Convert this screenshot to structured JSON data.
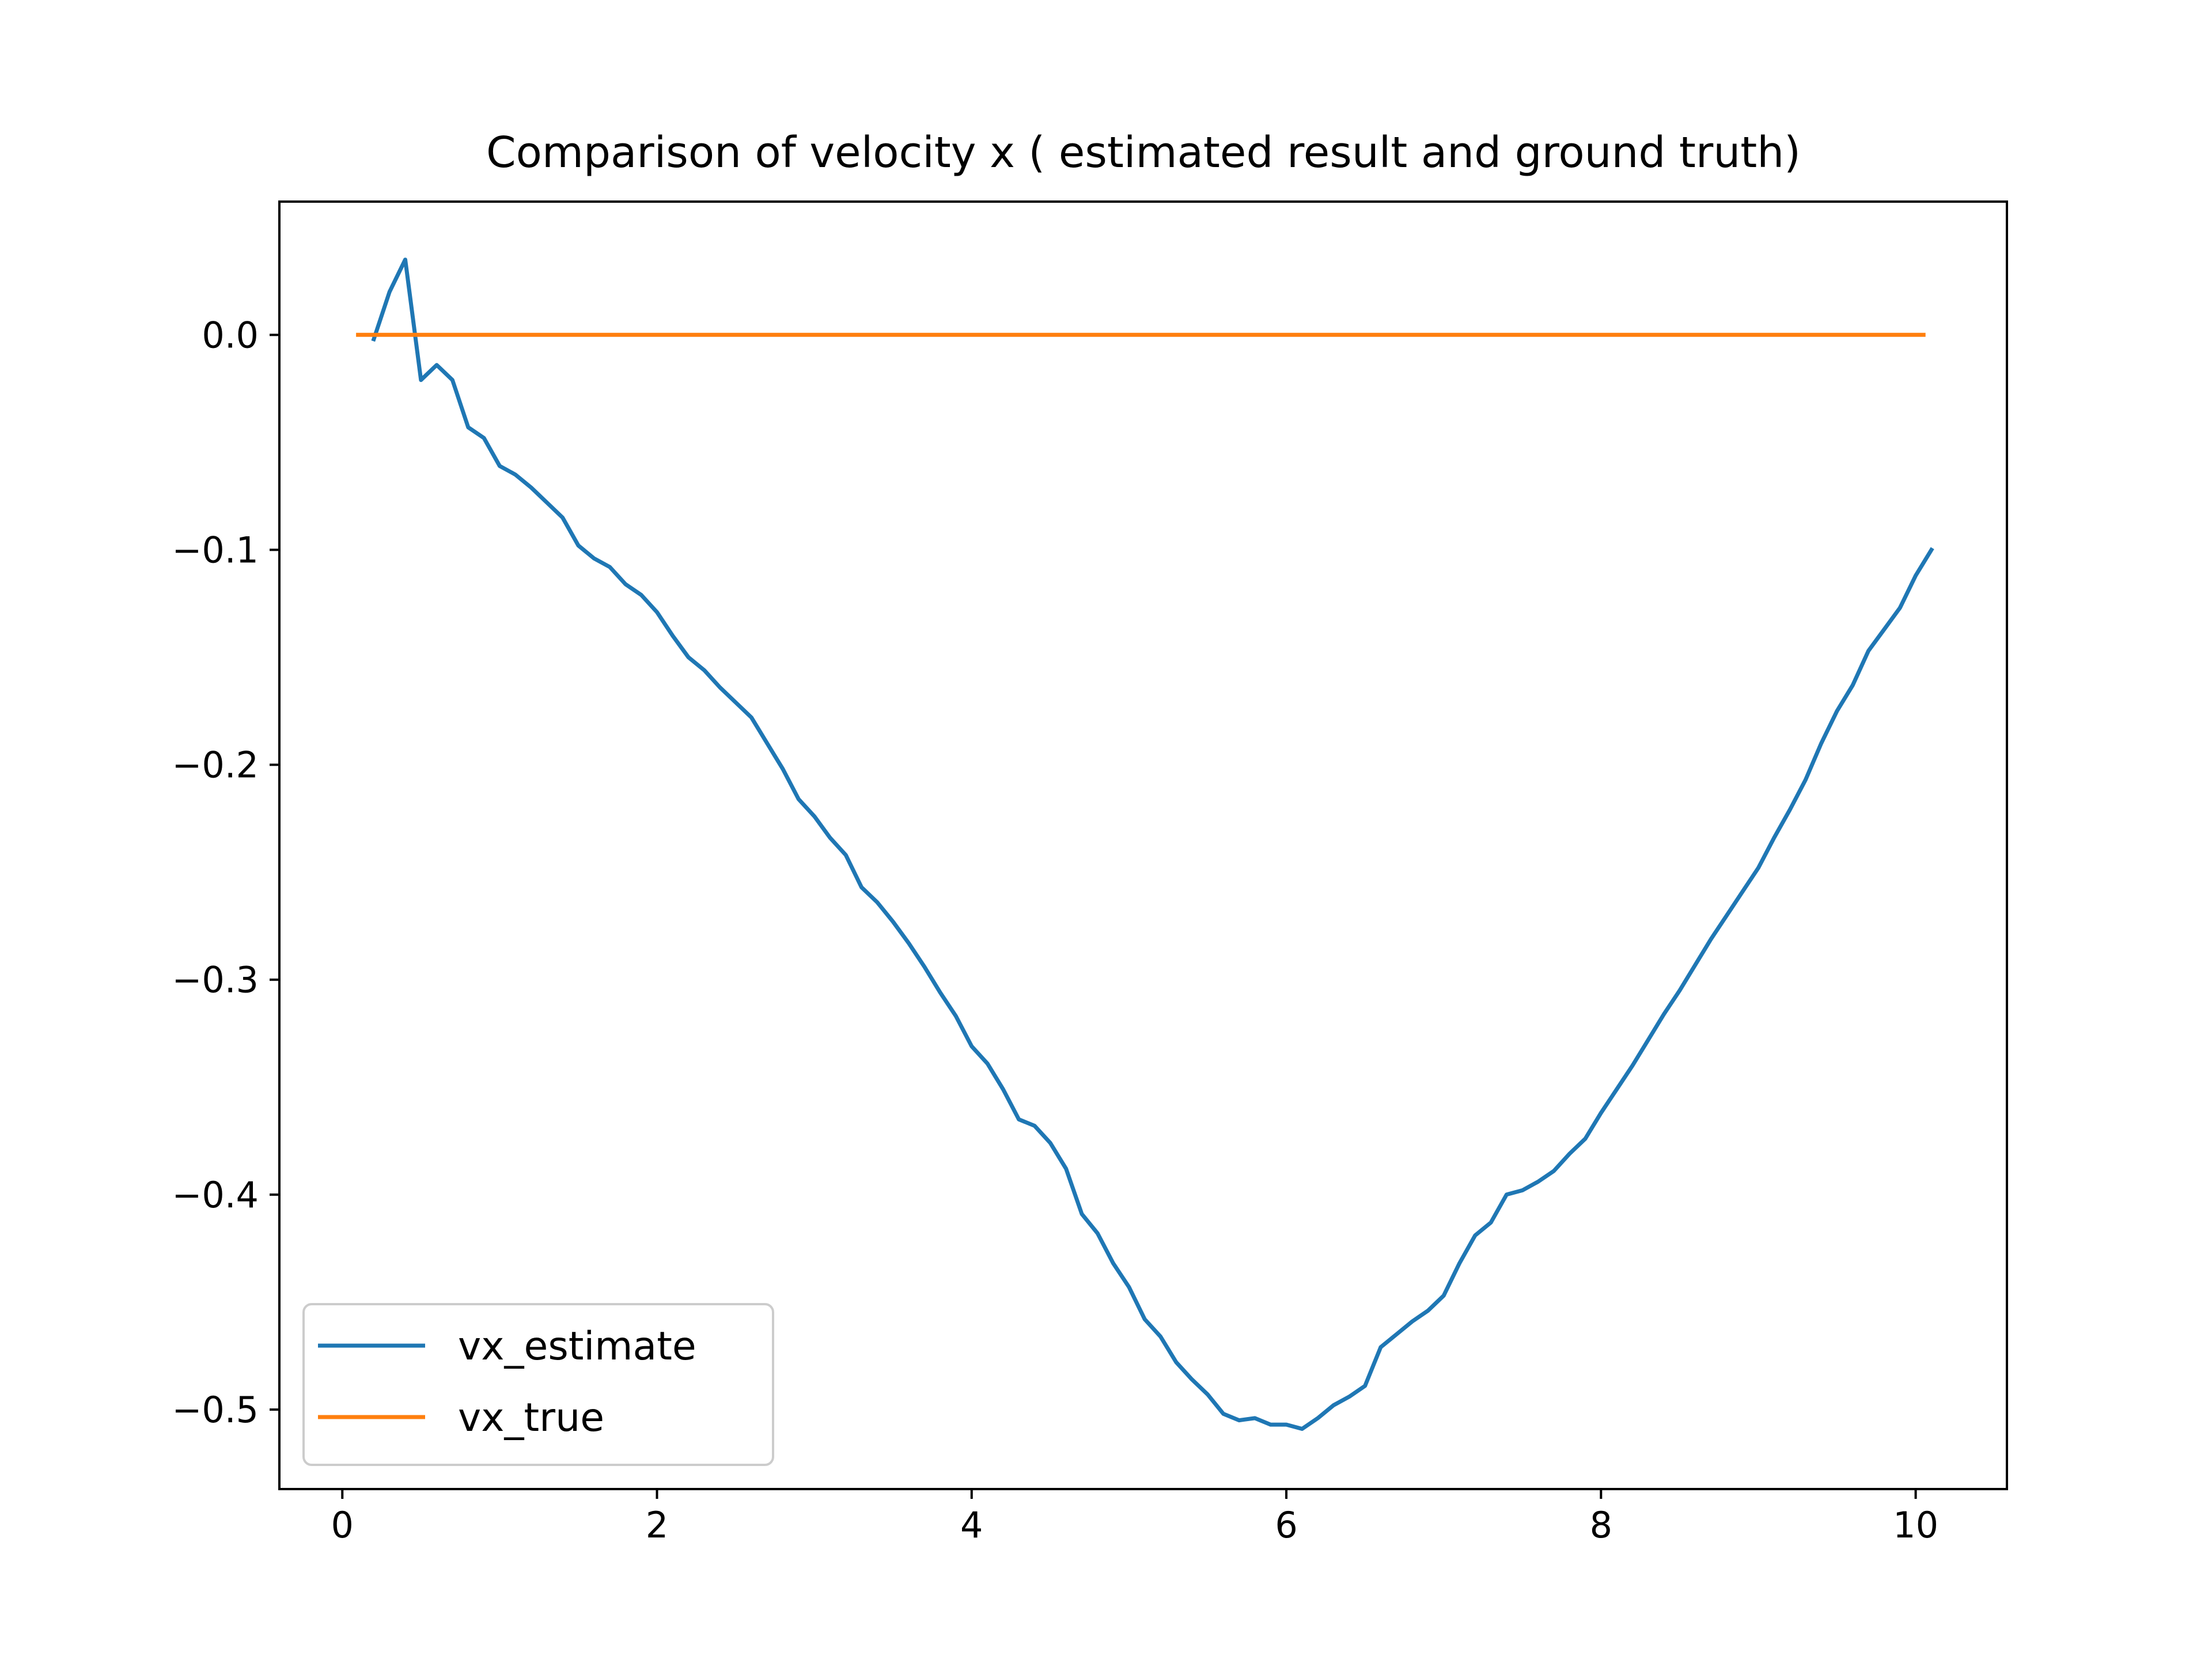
{
  "chart_data": {
    "type": "line",
    "title": "Comparison of velocity x ( estimated result and ground truth)",
    "xlabel": "",
    "ylabel": "",
    "xlim": [
      -0.4,
      10.58
    ],
    "ylim": [
      -0.537,
      0.062
    ],
    "xticks": [
      0,
      2,
      4,
      6,
      8,
      10
    ],
    "yticks": [
      0.0,
      -0.1,
      -0.2,
      -0.3,
      -0.4,
      -0.5
    ],
    "xtick_labels": [
      "0",
      "2",
      "4",
      "6",
      "8",
      "10"
    ],
    "ytick_labels": [
      "0.0",
      "−0.1",
      "−0.2",
      "−0.3",
      "−0.4",
      "−0.5"
    ],
    "grid": false,
    "legend_position": "lower-left",
    "series": [
      {
        "name": "vx_estimate",
        "color": "#1f77b4",
        "x": [
          0.2,
          0.3,
          0.4,
          0.5,
          0.6,
          0.7,
          0.8,
          0.9,
          1.0,
          1.1,
          1.2,
          1.3,
          1.4,
          1.5,
          1.6,
          1.7,
          1.8,
          1.9,
          2.0,
          2.1,
          2.2,
          2.3,
          2.4,
          2.5,
          2.6,
          2.7,
          2.8,
          2.9,
          3.0,
          3.1,
          3.2,
          3.3,
          3.4,
          3.5,
          3.6,
          3.7,
          3.8,
          3.9,
          4.0,
          4.1,
          4.2,
          4.3,
          4.4,
          4.5,
          4.6,
          4.7,
          4.8,
          4.9,
          5.0,
          5.1,
          5.2,
          5.3,
          5.4,
          5.5,
          5.6,
          5.7,
          5.8,
          5.9,
          6.0,
          6.1,
          6.2,
          6.3,
          6.4,
          6.5,
          6.6,
          6.7,
          6.8,
          6.9,
          7.0,
          7.1,
          7.2,
          7.3,
          7.4,
          7.5,
          7.6,
          7.7,
          7.8,
          7.9,
          8.0,
          8.1,
          8.2,
          8.3,
          8.4,
          8.5,
          8.6,
          8.7,
          8.8,
          8.9,
          9.0,
          9.1,
          9.2,
          9.3,
          9.4,
          9.5,
          9.6,
          9.7,
          9.8,
          9.9,
          10.0,
          10.1
        ],
        "y": [
          -0.002,
          0.02,
          0.035,
          -0.021,
          -0.014,
          -0.021,
          -0.043,
          -0.048,
          -0.061,
          -0.065,
          -0.071,
          -0.078,
          -0.085,
          -0.098,
          -0.104,
          -0.108,
          -0.116,
          -0.121,
          -0.129,
          -0.14,
          -0.15,
          -0.156,
          -0.164,
          -0.171,
          -0.178,
          -0.19,
          -0.202,
          -0.216,
          -0.224,
          -0.234,
          -0.242,
          -0.257,
          -0.264,
          -0.273,
          -0.283,
          -0.294,
          -0.306,
          -0.317,
          -0.331,
          -0.339,
          -0.351,
          -0.365,
          -0.368,
          -0.376,
          -0.388,
          -0.409,
          -0.418,
          -0.432,
          -0.443,
          -0.458,
          -0.466,
          -0.478,
          -0.486,
          -0.493,
          -0.502,
          -0.505,
          -0.504,
          -0.507,
          -0.507,
          -0.509,
          -0.504,
          -0.498,
          -0.494,
          -0.489,
          -0.471,
          -0.465,
          -0.459,
          -0.454,
          -0.447,
          -0.432,
          -0.419,
          -0.413,
          -0.4,
          -0.398,
          -0.394,
          -0.389,
          -0.381,
          -0.374,
          -0.362,
          -0.351,
          -0.34,
          -0.328,
          -0.316,
          -0.305,
          -0.293,
          -0.281,
          -0.27,
          -0.259,
          -0.248,
          -0.234,
          -0.221,
          -0.207,
          -0.19,
          -0.175,
          -0.163,
          -0.147,
          -0.137,
          -0.127,
          -0.112,
          -0.1
        ]
      },
      {
        "name": "vx_true",
        "color": "#ff7f0e",
        "x": [
          0.1,
          10.05
        ],
        "y": [
          0.0,
          0.0
        ]
      }
    ]
  }
}
